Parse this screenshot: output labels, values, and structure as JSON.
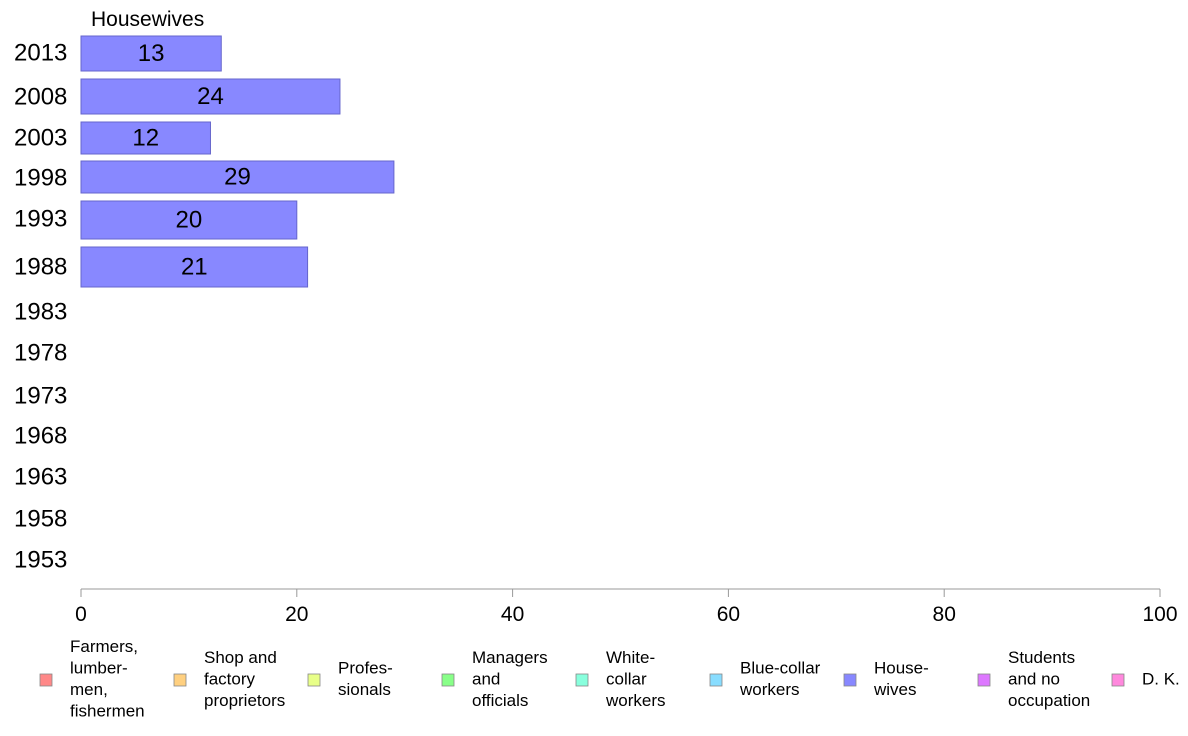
{
  "chart_data": {
    "type": "bar",
    "orientation": "horizontal",
    "title": "Housewives",
    "categories": [
      "2013",
      "2008",
      "2003",
      "1998",
      "1993",
      "1988",
      "1983",
      "1978",
      "1973",
      "1968",
      "1963",
      "1958",
      "1953"
    ],
    "series": [
      {
        "name": "Housewives",
        "color": "#8888ff",
        "values": [
          13,
          24,
          12,
          29,
          20,
          21,
          null,
          null,
          null,
          null,
          null,
          null,
          null
        ],
        "labels": [
          "13",
          "24",
          "12",
          "29",
          "20",
          "21",
          "",
          "",
          "",
          "",
          "",
          "",
          ""
        ]
      }
    ],
    "xlim": [
      0,
      100
    ],
    "xticks": [
      0,
      20,
      40,
      60,
      80,
      100
    ],
    "xtick_labels": [
      "0",
      "20",
      "40",
      "60",
      "80",
      "100"
    ],
    "grid": false,
    "legend_position": "bottom",
    "legend": [
      {
        "lines": [
          "Farmers,",
          "lumber-",
          "men,",
          "fishermen"
        ],
        "color": "#ff8888"
      },
      {
        "lines": [
          "Shop and",
          "factory",
          "proprietors"
        ],
        "color": "#ffd080"
      },
      {
        "lines": [
          "Profes-",
          "sionals"
        ],
        "color": "#e8ff88"
      },
      {
        "lines": [
          "Managers",
          "and",
          "officials"
        ],
        "color": "#88ff88"
      },
      {
        "lines": [
          "White-",
          "collar",
          "workers"
        ],
        "color": "#88ffdd"
      },
      {
        "lines": [
          "Blue-collar",
          "workers"
        ],
        "color": "#88ddff"
      },
      {
        "lines": [
          "House-",
          "wives"
        ],
        "color": "#8888ff"
      },
      {
        "lines": [
          "Students",
          "and no",
          "occupation"
        ],
        "color": "#dd77ff"
      },
      {
        "lines": [
          "D. K."
        ],
        "color": "#ff88dd"
      }
    ]
  }
}
